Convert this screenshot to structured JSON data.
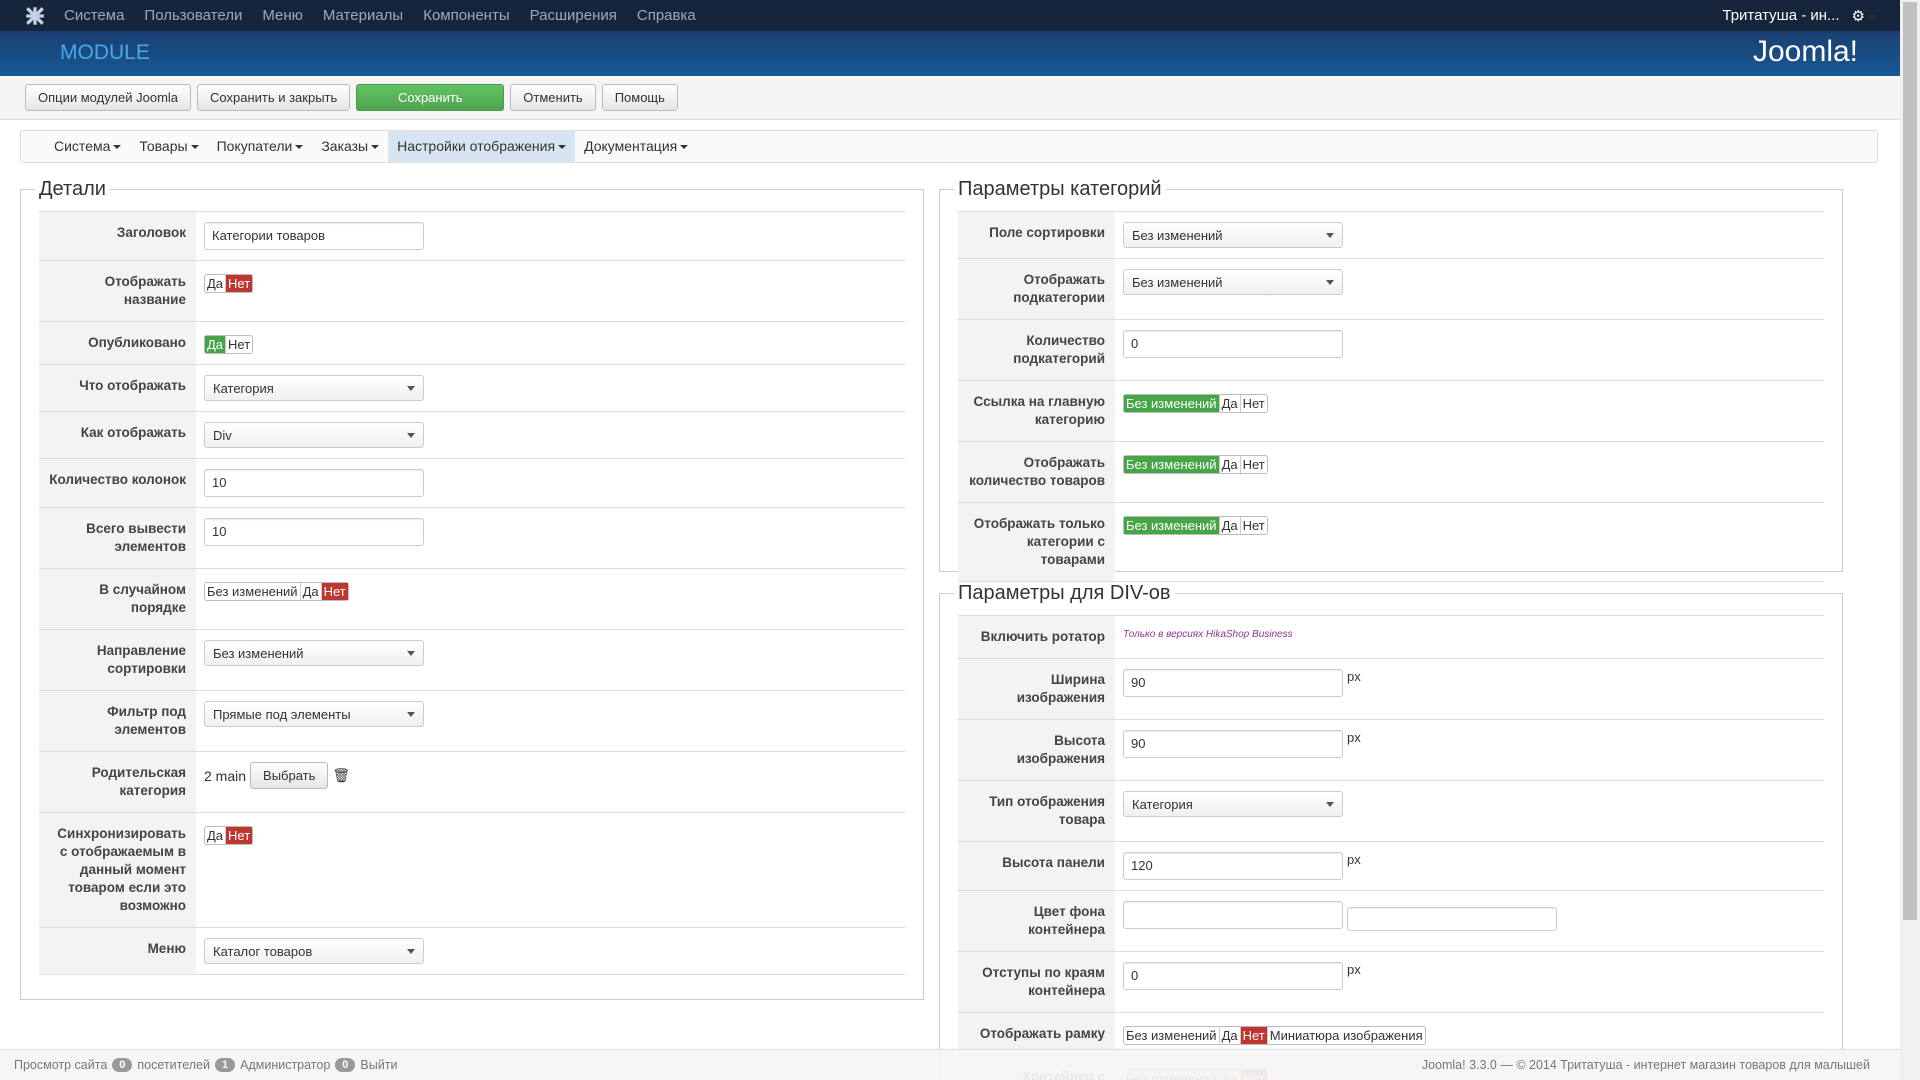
{
  "topmenu": {
    "items": [
      "Система",
      "Пользователи",
      "Меню",
      "Материалы",
      "Компоненты",
      "Расширения",
      "Справка"
    ],
    "user": "Тритатуша - ин..."
  },
  "header": {
    "title": "MODULE",
    "brand": "Joomla!"
  },
  "toolbar": [
    {
      "label": "Опции модулей Joomla",
      "style": "default"
    },
    {
      "label": "Сохранить и закрыть",
      "style": "default"
    },
    {
      "label": "Сохранить",
      "style": "success"
    },
    {
      "label": "Отменить",
      "style": "default"
    },
    {
      "label": "Помощь",
      "style": "default"
    }
  ],
  "submenu": {
    "items": [
      "Система",
      "Товары",
      "Покупатели",
      "Заказы",
      "Настройки отображения",
      "Документация"
    ],
    "active": 4
  },
  "details": {
    "legend": "Детали",
    "fields": [
      {
        "label": "Заголовок",
        "type": "input",
        "value": "Категории товаров"
      },
      {
        "label": "Отображать название",
        "type": "radio",
        "options": [
          "Да",
          "Нет"
        ],
        "active": 1,
        "active_color": "#bd362f"
      },
      {
        "label": "Опубликовано",
        "type": "radio",
        "options": [
          "Да",
          "Нет"
        ],
        "active": 0,
        "active_color": "#46a546"
      },
      {
        "label": "Что отображать",
        "type": "select",
        "value": "Категория"
      },
      {
        "label": "Как отображать",
        "type": "select",
        "value": "Div"
      },
      {
        "label": "Количество колонок",
        "type": "input",
        "value": "10"
      },
      {
        "label": "Всего вывести элементов",
        "type": "input",
        "value": "10"
      },
      {
        "label": "В случайном порядке",
        "type": "radio",
        "options": [
          "Без изменений",
          "Да",
          "Нет"
        ],
        "active": 2,
        "active_color": "#bd362f"
      },
      {
        "label": "Направление сортировки",
        "type": "select",
        "value": "Без изменений"
      },
      {
        "label": "Фильтр под элементов",
        "type": "select",
        "value": "Прямые под элементы"
      },
      {
        "label": "Родительская категория",
        "type": "chooser",
        "value": "2 main",
        "button": "Выбрать"
      },
      {
        "label": "Синхронизировать с отображаемым в данный момент товаром если это возможно",
        "type": "radio",
        "options": [
          "Да",
          "Нет"
        ],
        "active": 1,
        "active_color": "#bd362f"
      },
      {
        "label": "Меню",
        "type": "select",
        "value": "Каталог товаров"
      }
    ]
  },
  "categories": {
    "legend": "Параметры категорий",
    "fields": [
      {
        "label": "Поле сортировки",
        "type": "select",
        "value": "Без изменений"
      },
      {
        "label": "Отображать подкатегории",
        "type": "select",
        "value": "Без изменений"
      },
      {
        "label": "Количество подкатегорий",
        "type": "input",
        "value": "0"
      },
      {
        "label": "Ссылка на главную категорию",
        "type": "radio",
        "options": [
          "Без изменений",
          "Да",
          "Нет"
        ],
        "active": 0,
        "active_color": "#46a546"
      },
      {
        "label": "Отображать количество товаров",
        "type": "radio",
        "options": [
          "Без изменений",
          "Да",
          "Нет"
        ],
        "active": 0,
        "active_color": "#46a546"
      },
      {
        "label": "Отображать только категории с товарами",
        "type": "radio",
        "options": [
          "Без изменений",
          "Да",
          "Нет"
        ],
        "active": 0,
        "active_color": "#46a546"
      }
    ]
  },
  "divs": {
    "legend": "Параметры для DIV-ов",
    "fields": [
      {
        "label": "Включить ротатор",
        "type": "note",
        "value": "Только в версиях HikaShop Business"
      },
      {
        "label": "Ширина изображения",
        "type": "input",
        "value": "90",
        "suffix": "px"
      },
      {
        "label": "Высота изображения",
        "type": "input",
        "value": "90",
        "suffix": "px"
      },
      {
        "label": "Тип отображения товара",
        "type": "select",
        "value": "Категория"
      },
      {
        "label": "Высота панели",
        "type": "input",
        "value": "120",
        "suffix": "px"
      },
      {
        "label": "Цвет фона контейнера",
        "type": "color"
      },
      {
        "label": "Отступы по краям контейнера",
        "type": "input",
        "value": "0",
        "suffix": "px"
      },
      {
        "label": "Отображать рамку",
        "type": "radio",
        "options": [
          "Без изменений",
          "Да",
          "Нет",
          "Миниатюра изображения"
        ],
        "active": 2,
        "active_color": "#bd362f"
      },
      {
        "label": "Контейнер с",
        "type": "radio",
        "options": [
          "Без изменений",
          "Да",
          "Нет"
        ],
        "active": 2,
        "active_color": "#bd362f"
      }
    ]
  },
  "footer": {
    "view_site": "Просмотр сайта",
    "visitors": {
      "count": 0,
      "label": "посетителей"
    },
    "admins": {
      "count": 1,
      "label": "Администратор"
    },
    "messages": {
      "count": 0
    },
    "logout": "Выйти",
    "copyright": "Joomla! 3.3.0 — © 2014 Тритатуша - интернет магазин товаров для малышей"
  }
}
